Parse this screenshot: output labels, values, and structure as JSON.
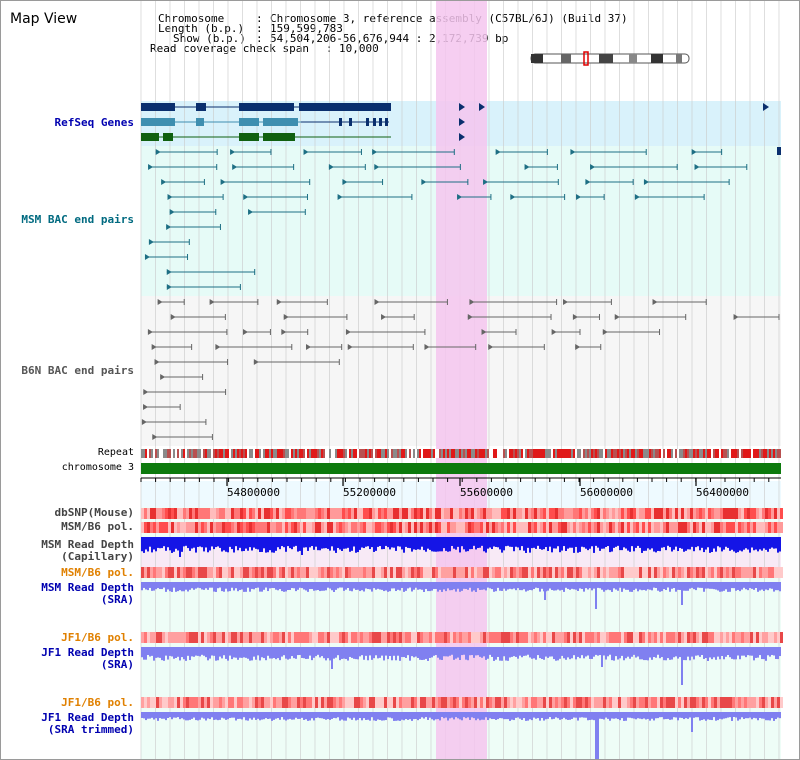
{
  "header": {
    "title": "Map View",
    "chromosome_label": "Chromosome",
    "chromosome_value": "Chromosome 3, reference assembly (C57BL/6J) (Build 37)",
    "length_label": "Length (b.p.)",
    "length_value": "159,599,783",
    "show_label": "Show (b.p.)",
    "show_value": "54,504,206-56,676,944 : 2,172,739 bp",
    "coverage_label": "Read coverage check span",
    "coverage_value": "10,000"
  },
  "tracks": {
    "refseq": "RefSeq Genes",
    "msm_bac": "MSM BAC end pairs",
    "b6n_bac": "B6N BAC end pairs",
    "repeat": "Repeat",
    "chromosome": "chromosome 3",
    "dbsnp": "dbSNP(Mouse)",
    "msm_pol": "MSM/B6 pol.",
    "msm_depth_cap_1": "MSM Read Depth",
    "msm_depth_cap_2": "(Capillary)",
    "msm_pol_sra": "MSM/B6 pol.",
    "msm_depth_sra_1": "MSM Read Depth",
    "msm_depth_sra_2": "(SRA)",
    "jf1_pol": "JF1/B6 pol.",
    "jf1_depth_1": "JF1 Read Depth",
    "jf1_depth_2": "(SRA)",
    "jf1_pol_trim": "JF1/B6 pol.",
    "jf1_trim_1": "JF1 Read Depth",
    "jf1_trim_2": "(SRA trimmed)"
  },
  "axis": {
    "ticks": [
      "54800000",
      "55200000",
      "55600000",
      "56000000",
      "56400000"
    ]
  },
  "colors": {
    "gene_blue": "#0a2f6e",
    "gene_teal": "#3f8fb0",
    "gene_green": "#106010",
    "bac_line": "#1e6f84",
    "b6n_line": "#666666",
    "highlight": "#f5c6ef",
    "chrom_green": "#0d7a0d",
    "depth_blue": "#1515e6",
    "depth_violet": "#8080f0",
    "label_blue": "#0000b0",
    "label_teal": "#006a80",
    "label_orange": "#e08000"
  }
}
